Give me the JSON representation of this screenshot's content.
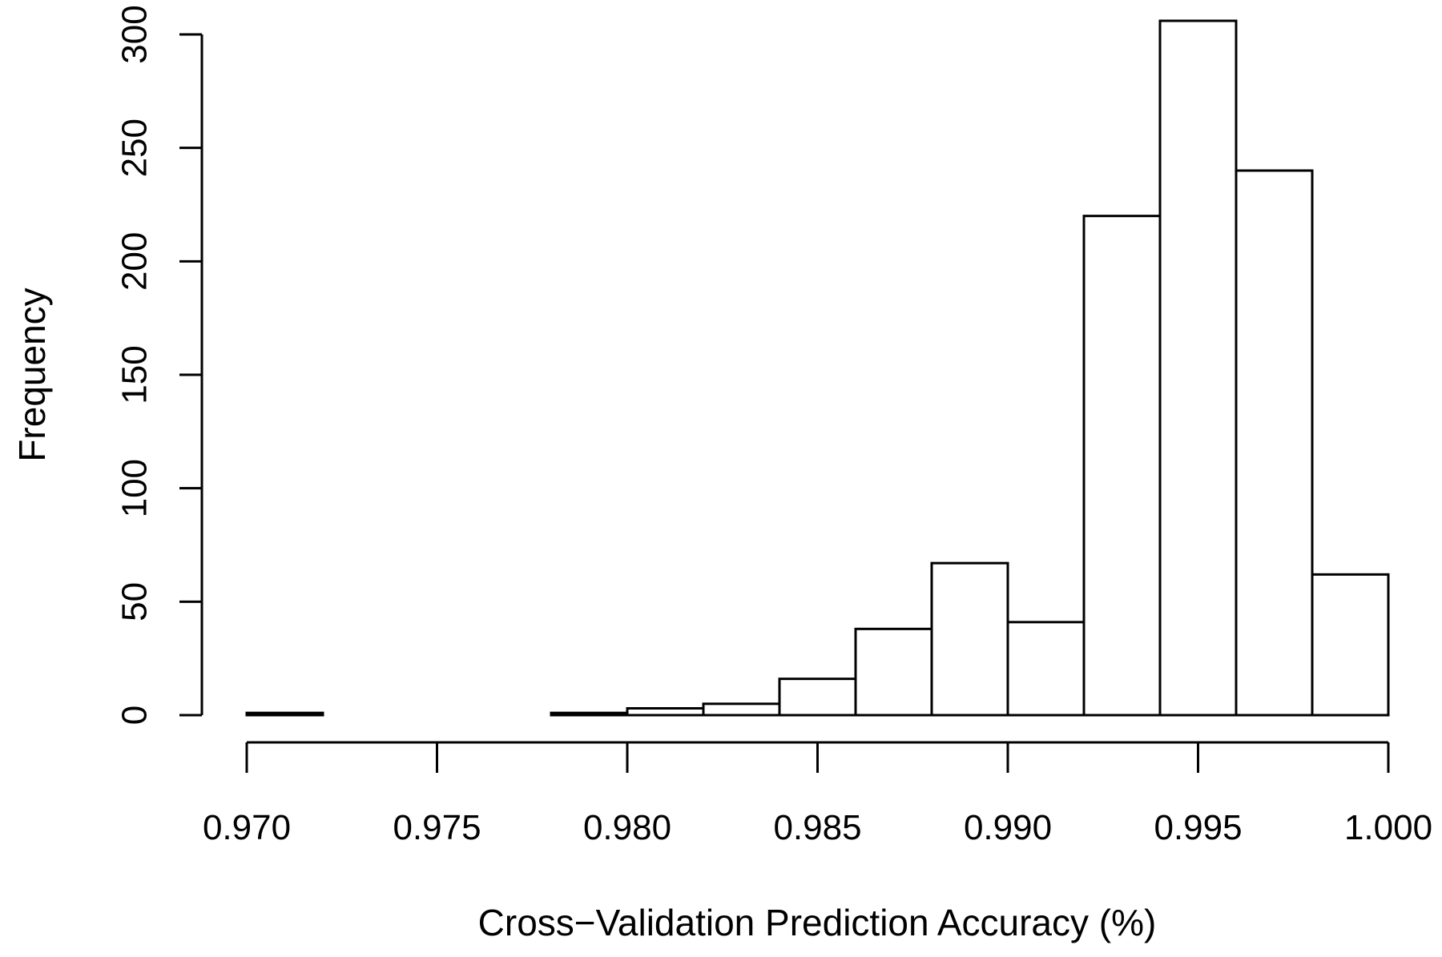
{
  "chart_data": {
    "type": "bar",
    "title": "",
    "xlabel": "Cross−Validation Prediction Accuracy (%)",
    "ylabel": "Frequency",
    "bin_edges": [
      0.97,
      0.972,
      0.974,
      0.976,
      0.978,
      0.98,
      0.982,
      0.984,
      0.986,
      0.988,
      0.99,
      0.992,
      0.994,
      0.996,
      0.998,
      1.0
    ],
    "values": [
      1,
      0,
      0,
      0,
      1,
      3,
      5,
      16,
      38,
      67,
      41,
      220,
      306,
      240,
      62
    ],
    "xlim": [
      0.97,
      1.0
    ],
    "ylim": [
      0,
      300
    ],
    "x_ticks": [
      0.97,
      0.975,
      0.98,
      0.985,
      0.99,
      0.995,
      1.0
    ],
    "x_tick_labels": [
      "0.970",
      "0.975",
      "0.980",
      "0.985",
      "0.990",
      "0.995",
      "1.000"
    ],
    "y_ticks": [
      0,
      50,
      100,
      150,
      200,
      250,
      300
    ],
    "y_tick_labels": [
      "0",
      "50",
      "100",
      "150",
      "200",
      "250",
      "300"
    ],
    "grid": false,
    "legend": "none",
    "colors": {
      "bar_fill": "#ffffff",
      "bar_stroke": "#000000",
      "axis": "#000000"
    }
  }
}
